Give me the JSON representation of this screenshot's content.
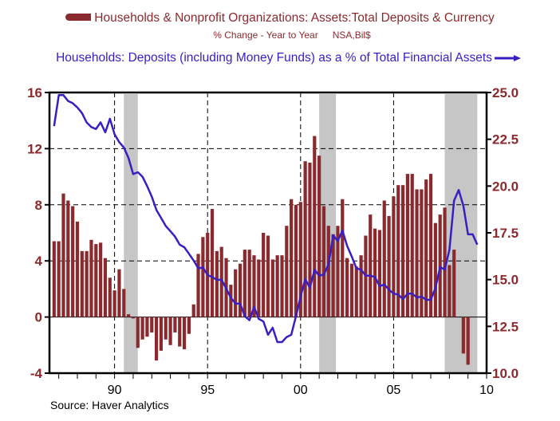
{
  "chart_data": {
    "type": "bar+line",
    "title": "",
    "legend": [
      {
        "name": "Households & Nonprofit Organizations: Assets:Total Deposits & Currency",
        "subtitle": [
          "% Change - Year to Year",
          "NSA,Bil$"
        ],
        "marker": "bar",
        "axis": "left",
        "color": "#8B2A2E"
      },
      {
        "name": "Households: Deposits (including Money Funds) as a % of Total Financial Assets",
        "marker": "line",
        "axis": "right",
        "color": "#3A1EC2"
      }
    ],
    "x": {
      "frequency": "quarterly",
      "start": 1986.75,
      "range": [
        1986.5,
        2010.0
      ],
      "tick_labels": [
        {
          "year": 1990,
          "label": "90"
        },
        {
          "year": 1995,
          "label": "95"
        },
        {
          "year": 2000,
          "label": "00"
        },
        {
          "year": 2005,
          "label": "05"
        },
        {
          "year": 2010,
          "label": "10"
        }
      ],
      "minor_ticks_every": 1
    },
    "y_left": {
      "ylim": [
        -4,
        16
      ],
      "ticks": [
        "-4",
        "0",
        "4",
        "8",
        "12",
        "16"
      ],
      "tick_values": [
        -4,
        0,
        4,
        8,
        12,
        16
      ],
      "gridlines": [
        4,
        8,
        12
      ]
    },
    "y_right": {
      "ylim": [
        10.0,
        25.0
      ],
      "ticks": [
        "10.0",
        "12.5",
        "15.0",
        "17.5",
        "20.0",
        "22.5",
        "25.0"
      ],
      "tick_values": [
        10,
        12.5,
        15,
        17.5,
        20,
        22.5,
        25
      ]
    },
    "vertical_gridlines": [
      1990,
      1995,
      2000,
      2005
    ],
    "recessions": [
      [
        1990.5,
        1991.25
      ],
      [
        2001.0,
        2001.9
      ],
      [
        2007.75,
        2009.5
      ]
    ],
    "series": [
      {
        "name": "Total Deposits & Currency % Change Y/Y",
        "type": "bar",
        "axis": "left",
        "color": "#8B2A2E",
        "values": [
          5.4,
          5.4,
          8.8,
          8.3,
          7.9,
          6.8,
          4.7,
          4.7,
          5.5,
          5.2,
          5.3,
          4.2,
          2.8,
          1.9,
          3.4,
          2.0,
          0.2,
          -0.1,
          -2.2,
          -1.6,
          -1.4,
          -1.1,
          -3.1,
          -2.4,
          -1.6,
          -2.0,
          -1.1,
          -2.1,
          -2.3,
          -1.2,
          0.9,
          4.5,
          5.7,
          6.0,
          7.7,
          4.7,
          5.0,
          4.2,
          2.3,
          3.4,
          3.8,
          4.8,
          4.8,
          4.4,
          4.1,
          6.0,
          5.8,
          4.1,
          4.4,
          4.4,
          6.5,
          8.4,
          8.0,
          8.2,
          11.1,
          11.0,
          12.9,
          11.5,
          7.9,
          6.5,
          5.9,
          6.5,
          8.4,
          4.2,
          3.8,
          3.6,
          4.4,
          5.8,
          7.3,
          6.3,
          6.2,
          8.3,
          7.2,
          8.6,
          9.4,
          9.4,
          10.2,
          10.2,
          9.1,
          9.1,
          9.8,
          10.2,
          6.7,
          7.3,
          7.8,
          3.7,
          4.8,
          null,
          -2.6,
          -3.4
        ]
      },
      {
        "name": "Deposits as % of Total Financial Assets",
        "type": "line",
        "axis": "right",
        "color": "#3A1EC2",
        "values": [
          23.2,
          24.86,
          24.86,
          24.55,
          24.43,
          24.2,
          23.9,
          23.4,
          23.15,
          23.05,
          23.4,
          22.87,
          23.6,
          22.77,
          22.35,
          22.06,
          21.5,
          20.64,
          20.74,
          20.5,
          20.0,
          19.43,
          18.72,
          18.3,
          17.87,
          17.59,
          17.3,
          16.87,
          16.73,
          16.38,
          16.02,
          15.6,
          15.65,
          15.24,
          15.14,
          14.99,
          14.99,
          14.53,
          14.03,
          13.72,
          13.72,
          13.04,
          12.83,
          13.54,
          12.9,
          12.76,
          12.05,
          12.43,
          11.66,
          11.66,
          11.93,
          12.05,
          13.04,
          14.1,
          15.03,
          14.56,
          15.53,
          15.21,
          15.27,
          15.81,
          17.37,
          17.06,
          17.62,
          16.81,
          16.24,
          15.6,
          15.53,
          15.21,
          15.21,
          15.13,
          14.65,
          14.74,
          14.46,
          14.25,
          14.2,
          13.96,
          14.25,
          14.25,
          14.04,
          14.1,
          13.92,
          13.92,
          14.56,
          15.67,
          15.53,
          16.6,
          19.22,
          19.79,
          18.94,
          17.42,
          17.42,
          16.87
        ]
      }
    ],
    "source": "Source: Haver Analytics"
  },
  "legend": {
    "bar_title": "Households & Nonprofit Organizations: Assets:Total Deposits & Currency",
    "bar_sub1": "% Change - Year to Year",
    "bar_sub2": "NSA,Bil$",
    "line_title": "Households: Deposits (including Money Funds) as a % of Total Financial Assets"
  },
  "footer": {
    "source": "Source: Haver Analytics"
  }
}
